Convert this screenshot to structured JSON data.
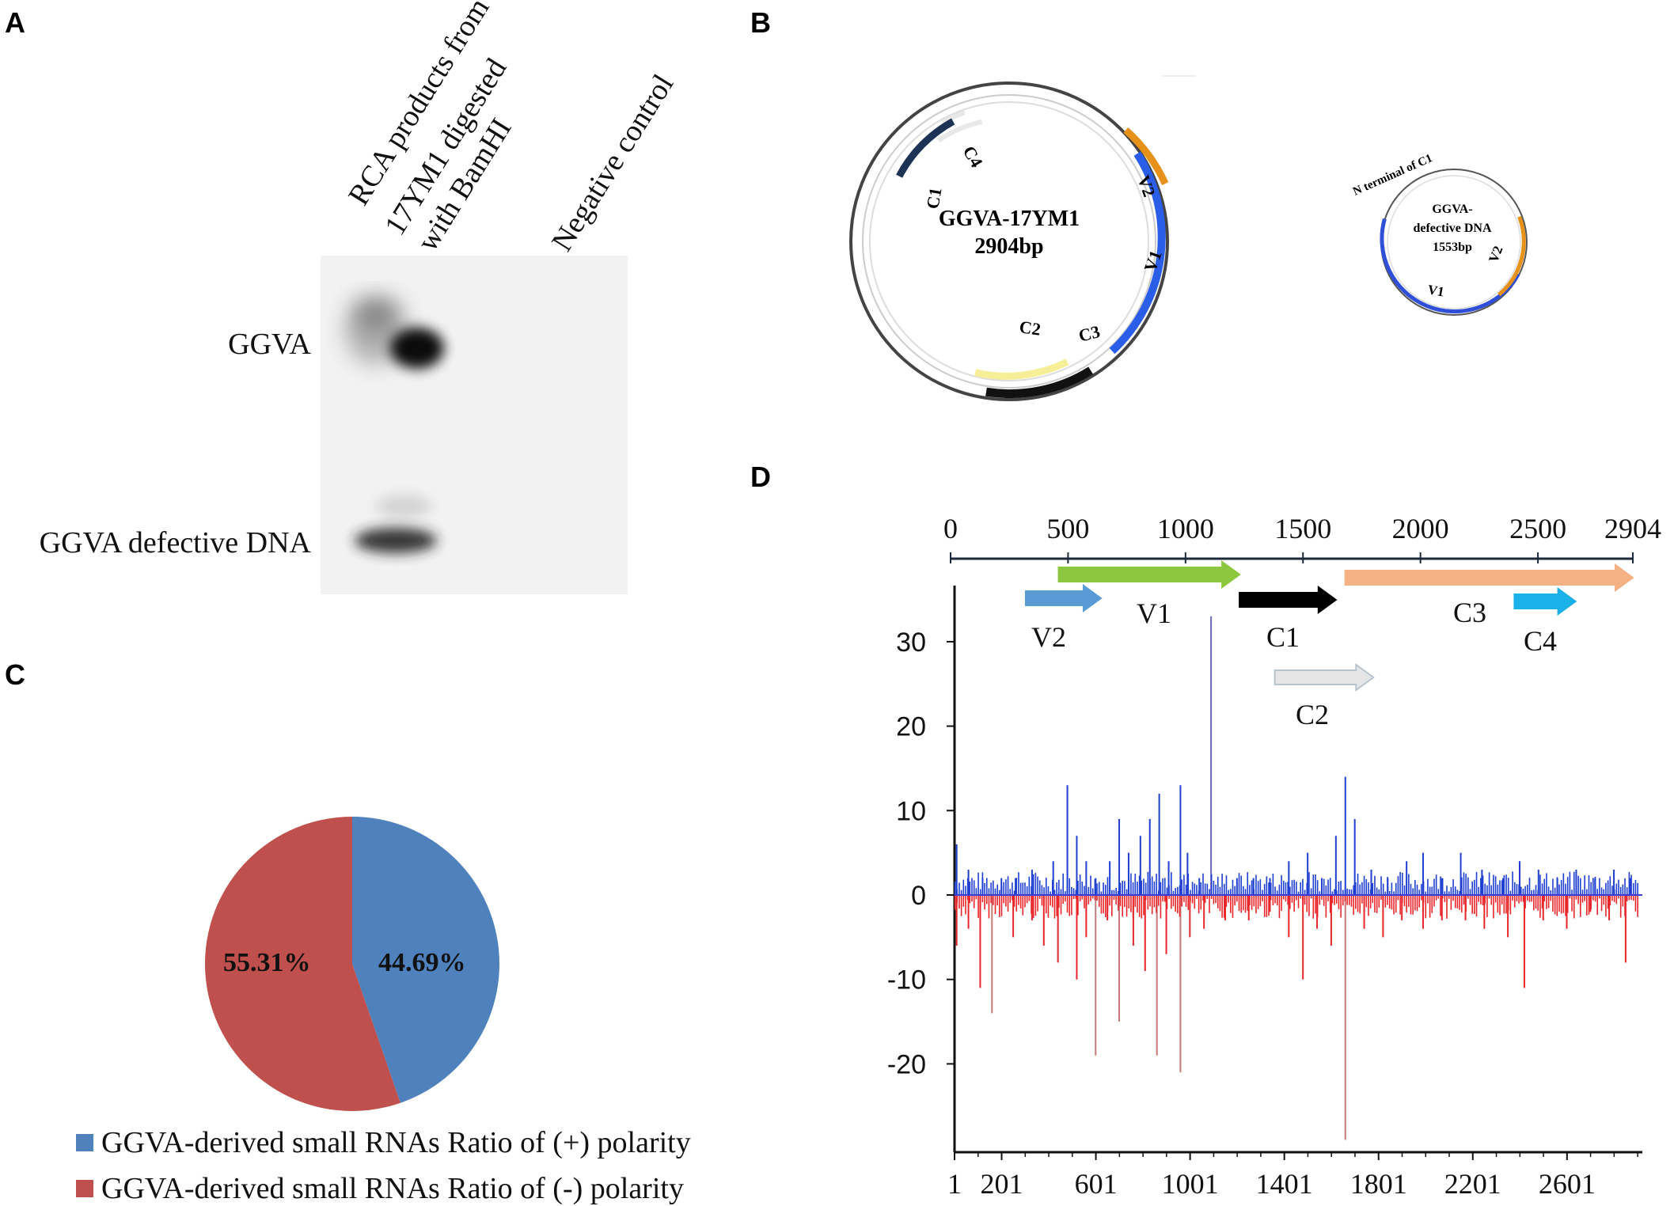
{
  "panels": {
    "a": {
      "letter": "A",
      "lane_labels": {
        "lane1_line1": "RCA products from",
        "lane1_line2": "17YM1 digested",
        "lane1_line3": "with BamHI",
        "lane2": "Negative control"
      },
      "band_labels": {
        "top": "GGVA",
        "bottom": "GGVA defective DNA"
      }
    },
    "b": {
      "letter": "B",
      "map1": {
        "name": "GGVA-17YM1",
        "size": "2904bp",
        "orfs": {
          "v1": "V1",
          "v2": "V2",
          "c1": "C1",
          "c2": "C2",
          "c3": "C3",
          "c4": "C4"
        }
      },
      "map2": {
        "name_line1": "GGVA-",
        "name_line2": "defective DNA",
        "size": "1553bp",
        "top_label": "N terminal of C1",
        "orfs": {
          "v1": "V1",
          "v2": "V2"
        }
      }
    },
    "c": {
      "letter": "C",
      "legend": [
        {
          "label": "GGVA-derived small RNAs Ratio of (+) polarity",
          "color": "#4f81bd"
        },
        {
          "label": "GGVA-derived small RNAs Ratio of (-) polarity",
          "color": "#c0504d"
        }
      ]
    },
    "d": {
      "letter": "D",
      "genome_axis": {
        "ticks": [
          "0",
          "500",
          "1000",
          "1500",
          "2000",
          "2500",
          "2904"
        ]
      },
      "orf_labels": {
        "v2": "V2",
        "v1": "V1",
        "c1": "C1",
        "c2": "C2",
        "c3": "C3",
        "c4": "C4"
      },
      "y_ticks": [
        "30",
        "20",
        "10",
        "0",
        "-10",
        "-20"
      ],
      "x_ticks": [
        "1",
        "201",
        "601",
        "1001",
        "1401",
        "1801",
        "2201",
        "2601"
      ]
    }
  },
  "chart_data": [
    {
      "type": "pie",
      "title": "",
      "categories": [
        "(+) polarity",
        "(-) polarity"
      ],
      "values": [
        44.69,
        55.31
      ],
      "labels": [
        "44.69%",
        "55.31%"
      ],
      "colors": [
        "#4f81bd",
        "#c0504d"
      ]
    },
    {
      "type": "bar",
      "title": "",
      "xlabel": "",
      "ylabel": "",
      "ylim": [
        -30,
        35
      ],
      "xlim": [
        1,
        2904
      ],
      "genome_length": 2904,
      "orfs": [
        {
          "name": "V2",
          "start": 320,
          "end": 640,
          "color": "#5b9bd5",
          "strand": "+"
        },
        {
          "name": "V1",
          "start": 460,
          "end": 1230,
          "color": "#8dc63f",
          "strand": "+"
        },
        {
          "name": "C1",
          "start": 1230,
          "end": 1640,
          "color": "#000000",
          "strand": "+"
        },
        {
          "name": "C2",
          "start": 1380,
          "end": 1800,
          "color": "#e6e6e6",
          "strand": "+"
        },
        {
          "name": "C3",
          "start": 1680,
          "end": 2904,
          "color": "#f4b183",
          "strand": "+"
        },
        {
          "name": "C4",
          "start": 2400,
          "end": 2660,
          "color": "#1ab0e8",
          "strand": "+"
        }
      ],
      "series": [
        {
          "name": "(+) polarity",
          "color": "#1f3fd1",
          "x": [
            10,
            60,
            120,
            200,
            260,
            330,
            420,
            480,
            520,
            560,
            600,
            660,
            700,
            740,
            790,
            830,
            870,
            910,
            960,
            990,
            1040,
            1090,
            1200,
            1270,
            1340,
            1420,
            1500,
            1560,
            1620,
            1660,
            1700,
            1770,
            1840,
            1920,
            1990,
            2070,
            2150,
            2240,
            2330,
            2400,
            2480,
            2560,
            2640,
            2720,
            2800,
            2870
          ],
          "values": [
            6,
            3,
            2,
            2,
            2,
            3,
            4,
            13,
            7,
            4,
            2,
            4,
            9,
            5,
            7,
            9,
            12,
            4,
            13,
            5,
            2,
            33,
            2,
            2,
            2,
            4,
            5,
            2,
            7,
            14,
            9,
            3,
            2,
            4,
            5,
            2,
            5,
            3,
            2,
            4,
            3,
            2,
            3,
            2,
            3,
            2
          ]
        },
        {
          "name": "(-) polarity",
          "color": "#e8262a",
          "x": [
            10,
            60,
            110,
            160,
            250,
            330,
            380,
            440,
            520,
            560,
            600,
            650,
            700,
            760,
            810,
            860,
            900,
            960,
            1000,
            1060,
            1150,
            1250,
            1340,
            1420,
            1480,
            1540,
            1600,
            1660,
            1740,
            1820,
            1900,
            1990,
            2070,
            2170,
            2250,
            2350,
            2420,
            2500,
            2600,
            2700,
            2780,
            2850
          ],
          "values": [
            -6,
            -4,
            -11,
            -14,
            -5,
            -3,
            -6,
            -8,
            -10,
            -5,
            -19,
            -3,
            -15,
            -6,
            -9,
            -19,
            -7,
            -21,
            -5,
            -4,
            -3,
            -3,
            -2,
            -5,
            -10,
            -4,
            -6,
            -29,
            -4,
            -5,
            -3,
            -4,
            -3,
            -3,
            -4,
            -5,
            -11,
            -3,
            -4,
            -2,
            -3,
            -8
          ]
        }
      ]
    }
  ]
}
